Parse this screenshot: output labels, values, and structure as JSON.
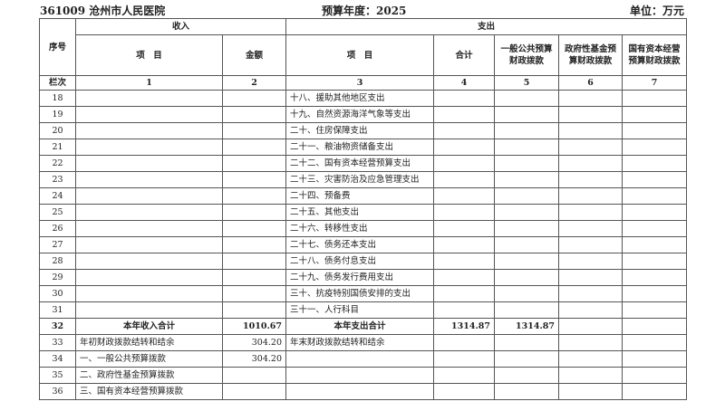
{
  "title": {
    "org": "361009 沧州市人民医院",
    "year": "预算年度：2025",
    "unit": "单位：万元"
  },
  "header": {
    "seq": "序号",
    "income": "收入",
    "expense": "支出",
    "item": "项　目",
    "amount": "金额",
    "item2": "项　目",
    "total": "合计",
    "general": "一般公共预算财政拨款",
    "fund": "政府性基金预算财政拨款",
    "state": "国有资本经营预算财政拨款",
    "col_row_label": "栏次",
    "col_nums": [
      "1",
      "2",
      "3",
      "4",
      "5",
      "6",
      "7"
    ]
  },
  "rows": [
    [
      "18",
      "",
      "",
      "十八、援助其他地区支出",
      "",
      "",
      "",
      ""
    ],
    [
      "19",
      "",
      "",
      "十九、自然资源海洋气象等支出",
      "",
      "",
      "",
      ""
    ],
    [
      "20",
      "",
      "",
      "二十、住房保障支出",
      "",
      "",
      "",
      ""
    ],
    [
      "21",
      "",
      "",
      "二十一、粮油物资储备支出",
      "",
      "",
      "",
      ""
    ],
    [
      "22",
      "",
      "",
      "二十二、国有资本经营预算支出",
      "",
      "",
      "",
      ""
    ],
    [
      "23",
      "",
      "",
      "二十三、灾害防治及应急管理支出",
      "",
      "",
      "",
      ""
    ],
    [
      "24",
      "",
      "",
      "二十四、预备费",
      "",
      "",
      "",
      ""
    ],
    [
      "25",
      "",
      "",
      "二十五、其他支出",
      "",
      "",
      "",
      ""
    ],
    [
      "26",
      "",
      "",
      "二十六、转移性支出",
      "",
      "",
      "",
      ""
    ],
    [
      "27",
      "",
      "",
      "二十七、债务还本支出",
      "",
      "",
      "",
      ""
    ],
    [
      "28",
      "",
      "",
      "二十八、债务付息支出",
      "",
      "",
      "",
      ""
    ],
    [
      "29",
      "",
      "",
      "二十九、债务发行费用支出",
      "",
      "",
      "",
      ""
    ],
    [
      "30",
      "",
      "",
      "三十、抗疫特别国债安排的支出",
      "",
      "",
      "",
      ""
    ],
    [
      "31",
      "",
      "",
      "三十一、人行科目",
      "",
      "",
      "",
      ""
    ],
    [
      "32",
      "本年收入合计",
      "1010.67",
      "本年支出合计",
      "1314.87",
      "1314.87",
      "",
      ""
    ],
    [
      "33",
      "年初财政拨款结转和结余",
      "304.20",
      "年末财政拨款结转和结余",
      "",
      "",
      "",
      ""
    ],
    [
      "34",
      "一、一般公共预算拨款",
      "304.20",
      "",
      "",
      "",
      "",
      ""
    ],
    [
      "35",
      "二、政府性基金预算拨款",
      "",
      "",
      "",
      "",
      "",
      ""
    ],
    [
      "36",
      "三、国有资本经营预算拨款",
      "",
      "",
      "",
      "",
      "",
      ""
    ]
  ]
}
